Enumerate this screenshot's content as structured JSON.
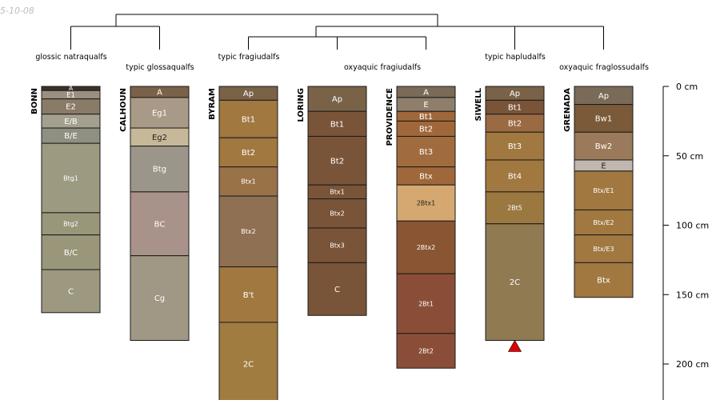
{
  "date_label": "5-10-08",
  "dendrogram_labels": [
    "glossic natraqualfs",
    "typic glossaqualfs",
    "typic fragiudalfs",
    "oxyaquic fragiudalfs",
    "typic hapludalfs",
    "oxyaquic fraglossudalfs"
  ],
  "depth_axis": {
    "unit": "cm",
    "ticks": [
      {
        "depth": 0,
        "label": "0 cm"
      },
      {
        "depth": 50,
        "label": "50 cm"
      },
      {
        "depth": 100,
        "label": "100 cm"
      },
      {
        "depth": 150,
        "label": "150 cm"
      },
      {
        "depth": 200,
        "label": "200 cm"
      }
    ]
  },
  "profiles": [
    {
      "name": "BONN",
      "horizons": [
        {
          "name": "A",
          "top": 0,
          "bottom": 3,
          "color": "#3b3128"
        },
        {
          "name": "E1",
          "top": 3,
          "bottom": 9,
          "color": "#9a8f80"
        },
        {
          "name": "E2",
          "top": 9,
          "bottom": 20,
          "color": "#8a7a68"
        },
        {
          "name": "E/B",
          "top": 20,
          "bottom": 30,
          "color": "#a3a090"
        },
        {
          "name": "B/E",
          "top": 30,
          "bottom": 41,
          "color": "#909082"
        },
        {
          "name": "Btg1",
          "top": 41,
          "bottom": 91,
          "color": "#9d9a82"
        },
        {
          "name": "Btg2",
          "top": 91,
          "bottom": 107,
          "color": "#9a967a"
        },
        {
          "name": "B/C",
          "top": 107,
          "bottom": 132,
          "color": "#9a967a"
        },
        {
          "name": "C",
          "top": 132,
          "bottom": 163,
          "color": "#9c9980"
        }
      ]
    },
    {
      "name": "CALHOUN",
      "horizons": [
        {
          "name": "A",
          "top": 0,
          "bottom": 8,
          "color": "#7a6248"
        },
        {
          "name": "Eg1",
          "top": 8,
          "bottom": 30,
          "color": "#a99a88"
        },
        {
          "name": "Eg2",
          "top": 30,
          "bottom": 43,
          "color": "#c8b89a"
        },
        {
          "name": "Btg",
          "top": 43,
          "bottom": 76,
          "color": "#9c968a"
        },
        {
          "name": "BC",
          "top": 76,
          "bottom": 122,
          "color": "#a9928a"
        },
        {
          "name": "Cg",
          "top": 122,
          "bottom": 183,
          "color": "#a09884"
        }
      ]
    },
    {
      "name": "BYRAM",
      "horizons": [
        {
          "name": "Ap",
          "top": 0,
          "bottom": 10,
          "color": "#7a6248"
        },
        {
          "name": "Bt1",
          "top": 10,
          "bottom": 37,
          "color": "#a17840"
        },
        {
          "name": "Bt2",
          "top": 37,
          "bottom": 58,
          "color": "#a17840"
        },
        {
          "name": "Btx1",
          "top": 58,
          "bottom": 79,
          "color": "#9a7248"
        },
        {
          "name": "Btx2",
          "top": 79,
          "bottom": 130,
          "color": "#8f7052"
        },
        {
          "name": "B't",
          "top": 130,
          "bottom": 170,
          "color": "#a17840"
        },
        {
          "name": "2C",
          "top": 170,
          "bottom": 230,
          "color": "#a17c40"
        }
      ]
    },
    {
      "name": "LORING",
      "horizons": [
        {
          "name": "Ap",
          "top": 0,
          "bottom": 18,
          "color": "#7a6248"
        },
        {
          "name": "Bt1",
          "top": 18,
          "bottom": 36,
          "color": "#7a5438"
        },
        {
          "name": "Bt2",
          "top": 36,
          "bottom": 71,
          "color": "#7a5438"
        },
        {
          "name": "Btx1",
          "top": 71,
          "bottom": 81,
          "color": "#7a5438"
        },
        {
          "name": "Btx2",
          "top": 81,
          "bottom": 102,
          "color": "#7a5438"
        },
        {
          "name": "Btx3",
          "top": 102,
          "bottom": 127,
          "color": "#7a5438"
        },
        {
          "name": "C",
          "top": 127,
          "bottom": 165,
          "color": "#7a5438"
        }
      ]
    },
    {
      "name": "PROVIDENCE",
      "horizons": [
        {
          "name": "A",
          "top": 0,
          "bottom": 8,
          "color": "#7a6a58"
        },
        {
          "name": "E",
          "top": 8,
          "bottom": 18,
          "color": "#8f7e6a"
        },
        {
          "name": "Bt1",
          "top": 18,
          "bottom": 25,
          "color": "#a0683a"
        },
        {
          "name": "Bt2",
          "top": 25,
          "bottom": 36,
          "color": "#a0683a"
        },
        {
          "name": "Bt3",
          "top": 36,
          "bottom": 58,
          "color": "#a06c3e"
        },
        {
          "name": "Btx",
          "top": 58,
          "bottom": 71,
          "color": "#a0683a"
        },
        {
          "name": "2Btx1",
          "top": 71,
          "bottom": 97,
          "color": "#d4a870"
        },
        {
          "name": "2Btx2",
          "top": 97,
          "bottom": 135,
          "color": "#8a5533"
        },
        {
          "name": "2Bt1",
          "top": 135,
          "bottom": 178,
          "color": "#8a4e38"
        },
        {
          "name": "2Bt2",
          "top": 178,
          "bottom": 203,
          "color": "#8a4e38"
        }
      ]
    },
    {
      "name": "SIWELL",
      "horizons": [
        {
          "name": "Ap",
          "top": 0,
          "bottom": 10,
          "color": "#7a6248"
        },
        {
          "name": "Bt1",
          "top": 10,
          "bottom": 20,
          "color": "#7a5438"
        },
        {
          "name": "Bt2",
          "top": 20,
          "bottom": 33,
          "color": "#9a6a42"
        },
        {
          "name": "Bt3",
          "top": 33,
          "bottom": 53,
          "color": "#a17840"
        },
        {
          "name": "Bt4",
          "top": 53,
          "bottom": 76,
          "color": "#a17840"
        },
        {
          "name": "2Bt5",
          "top": 76,
          "bottom": 99,
          "color": "#9a7840"
        },
        {
          "name": "2C",
          "top": 99,
          "bottom": 183,
          "color": "#8f7a52"
        }
      ]
    },
    {
      "name": "GRENADA",
      "horizons": [
        {
          "name": "Ap",
          "top": 0,
          "bottom": 13,
          "color": "#7a6a58"
        },
        {
          "name": "Bw1",
          "top": 13,
          "bottom": 33,
          "color": "#7a5a38"
        },
        {
          "name": "Bw2",
          "top": 33,
          "bottom": 53,
          "color": "#9a7a5a"
        },
        {
          "name": "E",
          "top": 53,
          "bottom": 61,
          "color": "#c0b8ae"
        },
        {
          "name": "Btx/E1",
          "top": 61,
          "bottom": 89,
          "color": "#a17840"
        },
        {
          "name": "Btx/E2",
          "top": 89,
          "bottom": 107,
          "color": "#a17840"
        },
        {
          "name": "Btx/E3",
          "top": 107,
          "bottom": 127,
          "color": "#a17840"
        },
        {
          "name": "Btx",
          "top": 127,
          "bottom": 152,
          "color": "#a17840"
        }
      ]
    }
  ],
  "marker": {
    "profile": "SIWELL",
    "depth": 183,
    "color": "#e00000"
  }
}
